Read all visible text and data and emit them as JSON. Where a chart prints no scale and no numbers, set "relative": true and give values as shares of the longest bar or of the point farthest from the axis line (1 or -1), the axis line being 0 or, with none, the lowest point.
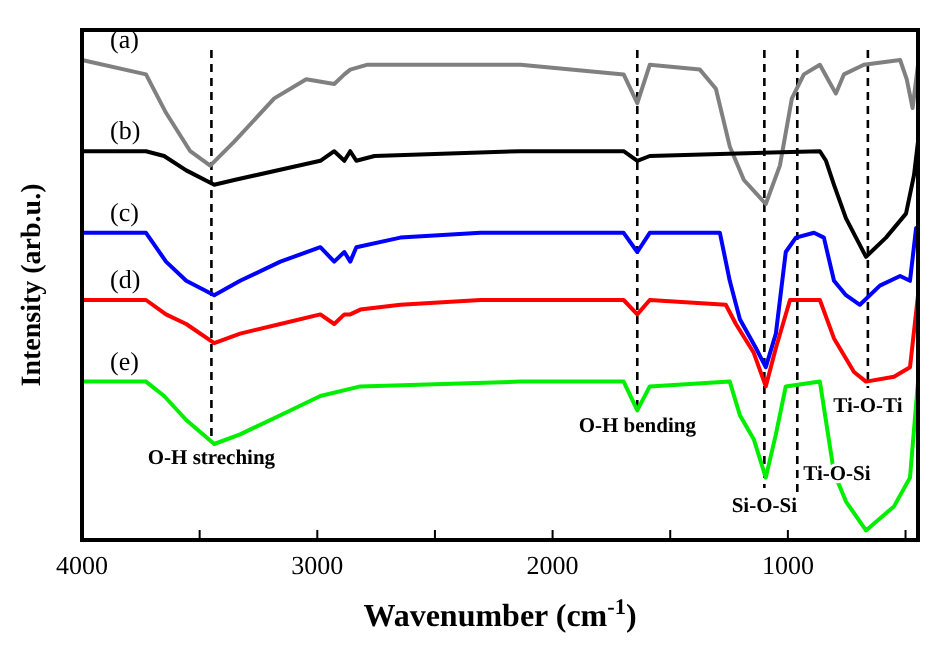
{
  "chart_data": {
    "type": "line",
    "relative": true,
    "xlabel": "Wavenumber (cm$^{-1}$)",
    "ylabel": "Intensity (arb.u.)",
    "xlim": [
      4000,
      447
    ],
    "xticks": [
      4000,
      {
        "value": 3500,
        "label": null
      },
      3000,
      {
        "value": 2500,
        "label": null
      },
      2000,
      {
        "value": 1500,
        "label": null
      },
      1000,
      {
        "value": 500,
        "label": null
      }
    ],
    "grid": false,
    "legend": false,
    "marker": "none",
    "line_style": "solid",
    "series": [
      {
        "name": "(a)",
        "color": "#808080",
        "x": [
          4000,
          3728,
          3643,
          3540,
          3455,
          3353,
          3183,
          3047,
          2928,
          2885,
          2860,
          2790,
          2136,
          1698,
          1640,
          1587,
          1374,
          1306,
          1247,
          1187,
          1094,
          1034,
          983,
          932,
          864,
          830,
          796,
          762,
          677,
          523,
          495,
          470,
          447
        ],
        "values": [
          1.0,
          0.97,
          0.89,
          0.81,
          0.78,
          0.83,
          0.92,
          0.96,
          0.95,
          0.97,
          0.98,
          0.99,
          0.99,
          0.97,
          0.91,
          0.99,
          0.98,
          0.94,
          0.82,
          0.75,
          0.7,
          0.78,
          0.92,
          0.97,
          0.99,
          0.96,
          0.93,
          0.97,
          0.99,
          1.0,
          0.96,
          0.9,
          0.99
        ]
      },
      {
        "name": "(b)",
        "color": "#000000",
        "x": [
          4000,
          3728,
          3651,
          3557,
          3438,
          3353,
          2987,
          2928,
          2885,
          2860,
          2834,
          2757,
          2136,
          1698,
          1640,
          1587,
          864,
          838,
          804,
          753,
          668,
          583,
          498,
          464,
          447
        ],
        "values": [
          0.81,
          0.81,
          0.8,
          0.77,
          0.74,
          0.75,
          0.79,
          0.81,
          0.79,
          0.81,
          0.79,
          0.8,
          0.81,
          0.81,
          0.79,
          0.8,
          0.81,
          0.79,
          0.74,
          0.67,
          0.59,
          0.63,
          0.68,
          0.76,
          0.83
        ]
      },
      {
        "name": "(c)",
        "color": "#0000ff",
        "x": [
          4000,
          3728,
          3643,
          3557,
          3438,
          3328,
          3157,
          2987,
          2928,
          2885,
          2860,
          2834,
          2647,
          2306,
          1698,
          1640,
          1587,
          1289,
          1247,
          1204,
          1136,
          1094,
          1051,
          1009,
          966,
          889,
          847,
          804,
          753,
          694,
          609,
          523,
          481,
          455
        ],
        "values": [
          0.64,
          0.64,
          0.58,
          0.54,
          0.51,
          0.54,
          0.58,
          0.61,
          0.58,
          0.6,
          0.58,
          0.61,
          0.63,
          0.64,
          0.64,
          0.6,
          0.64,
          0.64,
          0.54,
          0.46,
          0.4,
          0.36,
          0.43,
          0.6,
          0.63,
          0.64,
          0.63,
          0.54,
          0.51,
          0.49,
          0.53,
          0.55,
          0.54,
          0.65
        ]
      },
      {
        "name": "(d)",
        "color": "#ff0000",
        "x": [
          4000,
          3728,
          3643,
          3557,
          3438,
          3328,
          3157,
          2987,
          2928,
          2885,
          2860,
          2817,
          2647,
          2306,
          1698,
          1640,
          1587,
          1264,
          1221,
          1145,
          1094,
          1051,
          991,
          864,
          804,
          719,
          668,
          549,
          481,
          447
        ],
        "values": [
          0.5,
          0.5,
          0.47,
          0.45,
          0.41,
          0.43,
          0.45,
          0.47,
          0.45,
          0.47,
          0.47,
          0.48,
          0.49,
          0.5,
          0.5,
          0.47,
          0.5,
          0.49,
          0.45,
          0.39,
          0.32,
          0.4,
          0.5,
          0.5,
          0.42,
          0.35,
          0.33,
          0.34,
          0.36,
          0.51
        ]
      },
      {
        "name": "(e)",
        "color": "#00ee00",
        "x": [
          4000,
          3728,
          3651,
          3557,
          3438,
          3328,
          3157,
          2987,
          2817,
          2136,
          1698,
          1640,
          1587,
          1247,
          1204,
          1145,
          1094,
          1051,
          1009,
          864,
          804,
          753,
          668,
          549,
          481,
          447
        ],
        "values": [
          0.33,
          0.33,
          0.3,
          0.25,
          0.2,
          0.22,
          0.26,
          0.3,
          0.32,
          0.33,
          0.33,
          0.27,
          0.32,
          0.33,
          0.26,
          0.21,
          0.13,
          0.22,
          0.32,
          0.33,
          0.14,
          0.08,
          0.02,
          0.07,
          0.13,
          0.33
        ]
      }
    ],
    "ref_lines": [
      {
        "axis": "x",
        "value": 3450,
        "line_style": "dashed",
        "color": "#000000",
        "label": "O-H streching"
      },
      {
        "axis": "x",
        "value": 1640,
        "line_style": "dashed",
        "color": "#000000",
        "label": "O-H bending"
      },
      {
        "axis": "x",
        "value": 1100,
        "line_style": "dashed",
        "color": "#000000",
        "label": "Si-O-Si"
      },
      {
        "axis": "x",
        "value": 960,
        "line_style": "dashed",
        "color": "#000000",
        "label": "Ti-O-Si"
      },
      {
        "axis": "x",
        "value": 660,
        "line_style": "dashed",
        "color": "#000000",
        "label": "Ti-O-Ti"
      }
    ]
  }
}
